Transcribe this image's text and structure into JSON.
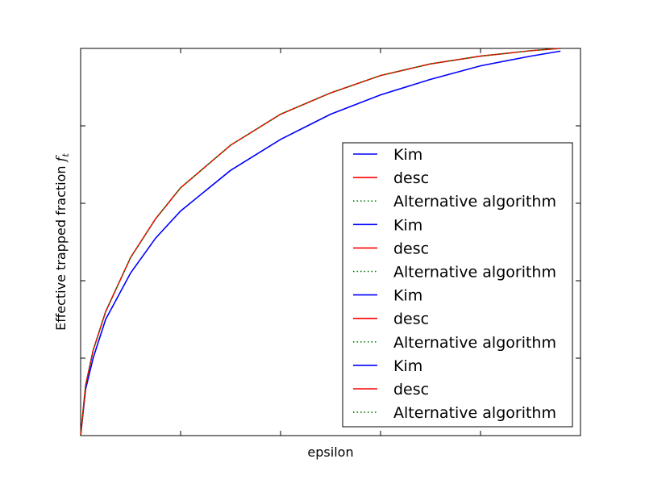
{
  "chart_data": {
    "type": "line",
    "title": "",
    "xlabel": "epsilon",
    "ylabel": "Effective trapped fraction",
    "ylabel_math": "f",
    "ylabel_math_sub": "t",
    "xlim": [
      0,
      1
    ],
    "ylim": [
      0,
      1
    ],
    "x_tick_labels": [],
    "y_tick_labels": [],
    "grid": false,
    "legend_position": "lower-right",
    "x": [
      0,
      0.01,
      0.025,
      0.05,
      0.1,
      0.15,
      0.2,
      0.3,
      0.4,
      0.5,
      0.6,
      0.7,
      0.8,
      0.9,
      0.96
    ],
    "series": [
      {
        "name": "Kim",
        "style": "solid",
        "color": "#0000ff",
        "values": [
          0,
          0.12,
          0.2,
          0.3,
          0.42,
          0.51,
          0.58,
          0.685,
          0.765,
          0.83,
          0.88,
          0.92,
          0.955,
          0.98,
          0.993
        ]
      },
      {
        "name": "desc",
        "style": "solid",
        "color": "#ff0000",
        "values": [
          0,
          0.13,
          0.22,
          0.32,
          0.46,
          0.56,
          0.64,
          0.75,
          0.83,
          0.885,
          0.93,
          0.96,
          0.98,
          0.994,
          1.0
        ]
      },
      {
        "name": "Alternative algorithm",
        "style": "dotted",
        "color": "#008000",
        "values": [
          0,
          0.13,
          0.22,
          0.32,
          0.46,
          0.56,
          0.64,
          0.75,
          0.83,
          0.885,
          0.93,
          0.96,
          0.98,
          0.994,
          1.0
        ]
      }
    ],
    "legend_entries": [
      {
        "name": "Kim",
        "style": "solid",
        "color": "#0000ff"
      },
      {
        "name": "desc",
        "style": "solid",
        "color": "#ff0000"
      },
      {
        "name": "Alternative algorithm",
        "style": "dotted",
        "color": "#008000"
      },
      {
        "name": "Kim",
        "style": "solid",
        "color": "#0000ff"
      },
      {
        "name": "desc",
        "style": "solid",
        "color": "#ff0000"
      },
      {
        "name": "Alternative algorithm",
        "style": "dotted",
        "color": "#008000"
      },
      {
        "name": "Kim",
        "style": "solid",
        "color": "#0000ff"
      },
      {
        "name": "desc",
        "style": "solid",
        "color": "#ff0000"
      },
      {
        "name": "Alternative algorithm",
        "style": "dotted",
        "color": "#008000"
      },
      {
        "name": "Kim",
        "style": "solid",
        "color": "#0000ff"
      },
      {
        "name": "desc",
        "style": "solid",
        "color": "#ff0000"
      },
      {
        "name": "Alternative algorithm",
        "style": "dotted",
        "color": "#008000"
      }
    ]
  }
}
